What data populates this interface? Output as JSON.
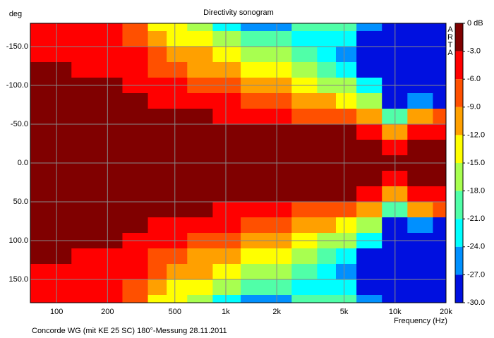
{
  "chart_data": {
    "type": "heatmap",
    "title": "Directivity sonogram",
    "x_label": "Frequency (Hz)",
    "y_label": "deg",
    "brand": "ARTA",
    "footnote": "Concorde WG (mit KE 25 SC) 180°-Messung 28.11.2011",
    "x_log": true,
    "xlim": [
      70,
      20000
    ],
    "xticks": [
      100,
      200,
      500,
      {
        "value": 1000,
        "label": "1k"
      },
      {
        "value": 2000,
        "label": "2k"
      },
      {
        "value": 5000,
        "label": "5k"
      },
      {
        "value": 10000,
        "label": "10k"
      },
      {
        "value": 20000,
        "label": "20k"
      }
    ],
    "ylim": [
      -180,
      180
    ],
    "y_inverted": true,
    "yticks": [
      {
        "value": -150,
        "label": "-150.0"
      },
      {
        "value": -100,
        "label": "-100.0"
      },
      {
        "value": -50,
        "label": "-50.0"
      },
      {
        "value": 0,
        "label": "0.0"
      },
      {
        "value": 50,
        "label": "50.0"
      },
      {
        "value": 100,
        "label": "100.0"
      },
      {
        "value": 150,
        "label": "150.0"
      }
    ],
    "grid": true,
    "x": [
      70,
      100,
      150,
      200,
      300,
      400,
      500,
      700,
      1000,
      1500,
      2000,
      3000,
      4000,
      5000,
      7000,
      10000,
      14000,
      20000
    ],
    "y": [
      -180,
      -160,
      -140,
      -120,
      -100,
      -80,
      -60,
      -40,
      -20,
      0,
      20,
      40,
      60,
      80,
      100,
      120,
      140,
      160,
      180
    ],
    "values": [
      [
        -4,
        -4,
        -4,
        -5,
        -8,
        -13,
        -14,
        -16,
        -21,
        -24,
        -25,
        -20,
        -19,
        -18,
        -24,
        -30,
        -30,
        -30
      ],
      [
        -4,
        -4,
        -4,
        -5,
        -8,
        -10,
        -13,
        -14,
        -17,
        -19,
        -19,
        -22,
        -23,
        -22,
        -27,
        -30,
        -30,
        -30
      ],
      [
        -4,
        -4,
        -4,
        -5,
        -5,
        -8,
        -9,
        -11,
        -14,
        -16,
        -16,
        -20,
        -21,
        -25,
        -29,
        -29,
        -30,
        -30
      ],
      [
        -2,
        -2,
        -4,
        -5,
        -5,
        -8,
        -8,
        -9,
        -11,
        -13,
        -14,
        -17,
        -18,
        -22,
        -27,
        -28,
        -30,
        -30
      ],
      [
        -2,
        -2,
        -2,
        -2,
        -5,
        -5,
        -5,
        -7,
        -8,
        -10,
        -11,
        -14,
        -15,
        -17,
        -22,
        -29,
        -29,
        -29
      ],
      [
        -2,
        -2,
        -2,
        -2,
        -2,
        -5,
        -5,
        -5,
        -5,
        -7,
        -8,
        -10,
        -11,
        -12,
        -16,
        -29,
        -26,
        -28
      ],
      [
        -2,
        -2,
        -2,
        -2,
        -2,
        -2,
        -2,
        -2,
        -4,
        -4,
        -5,
        -6,
        -7,
        -8,
        -10,
        -20,
        -9,
        -8
      ],
      [
        -2,
        -2,
        -2,
        -2,
        -2,
        -2,
        -2,
        -2,
        -2,
        -2,
        -2,
        -2,
        -2,
        -2,
        -4,
        -11,
        -5,
        -4
      ],
      [
        -2,
        -2,
        -2,
        -2,
        -2,
        -2,
        -2,
        -2,
        -2,
        -2,
        -2,
        -2,
        -2,
        -2,
        -2,
        -4,
        -2,
        -2
      ],
      [
        -2,
        -2,
        -2,
        -2,
        -2,
        -2,
        -2,
        -2,
        -2,
        -2,
        -2,
        -2,
        -2,
        -2,
        -2,
        -2,
        -2,
        -2
      ],
      [
        -2,
        -2,
        -2,
        -2,
        -2,
        -2,
        -2,
        -2,
        -2,
        -2,
        -2,
        -2,
        -2,
        -2,
        -2,
        -4,
        -2,
        -2
      ],
      [
        -2,
        -2,
        -2,
        -2,
        -2,
        -2,
        -2,
        -2,
        -2,
        -2,
        -2,
        -2,
        -2,
        -2,
        -4,
        -11,
        -5,
        -4
      ],
      [
        -2,
        -2,
        -2,
        -2,
        -2,
        -2,
        -2,
        -2,
        -4,
        -4,
        -5,
        -6,
        -7,
        -8,
        -10,
        -20,
        -9,
        -8
      ],
      [
        -2,
        -2,
        -2,
        -2,
        -2,
        -5,
        -5,
        -5,
        -5,
        -7,
        -8,
        -10,
        -11,
        -12,
        -16,
        -29,
        -26,
        -28
      ],
      [
        -2,
        -2,
        -2,
        -2,
        -5,
        -5,
        -5,
        -7,
        -8,
        -10,
        -11,
        -14,
        -15,
        -17,
        -22,
        -29,
        -29,
        -29
      ],
      [
        -2,
        -2,
        -4,
        -5,
        -5,
        -8,
        -8,
        -9,
        -11,
        -13,
        -14,
        -17,
        -18,
        -22,
        -27,
        -28,
        -30,
        -30
      ],
      [
        -4,
        -4,
        -4,
        -5,
        -5,
        -8,
        -9,
        -11,
        -14,
        -16,
        -16,
        -20,
        -21,
        -25,
        -29,
        -29,
        -30,
        -30
      ],
      [
        -4,
        -4,
        -4,
        -5,
        -8,
        -10,
        -13,
        -14,
        -17,
        -19,
        -19,
        -22,
        -23,
        -22,
        -27,
        -30,
        -30,
        -30
      ],
      [
        -4,
        -4,
        -4,
        -5,
        -8,
        -13,
        -14,
        -16,
        -21,
        -24,
        -25,
        -20,
        -19,
        -18,
        -24,
        -30,
        -30,
        -30
      ]
    ],
    "zlim": [
      -30,
      0
    ],
    "zticks": [
      {
        "value": 0,
        "label": "0 dB"
      },
      {
        "value": -3,
        "label": "-3.0"
      },
      {
        "value": -6,
        "label": "-6.0"
      },
      {
        "value": -9,
        "label": "-9.0"
      },
      {
        "value": -12,
        "label": "-12.0"
      },
      {
        "value": -15,
        "label": "-15.0"
      },
      {
        "value": -18,
        "label": "-18.0"
      },
      {
        "value": -21,
        "label": "-21.0"
      },
      {
        "value": -24,
        "label": "-24.0"
      },
      {
        "value": -27,
        "label": "-27.0"
      },
      {
        "value": -30,
        "label": "-30.0"
      }
    ],
    "colors": [
      "#800000",
      "#ff0000",
      "#ff5000",
      "#ffa000",
      "#ffff00",
      "#a8ff50",
      "#50ffa8",
      "#00ffff",
      "#0090ff",
      "#0010e0"
    ]
  }
}
